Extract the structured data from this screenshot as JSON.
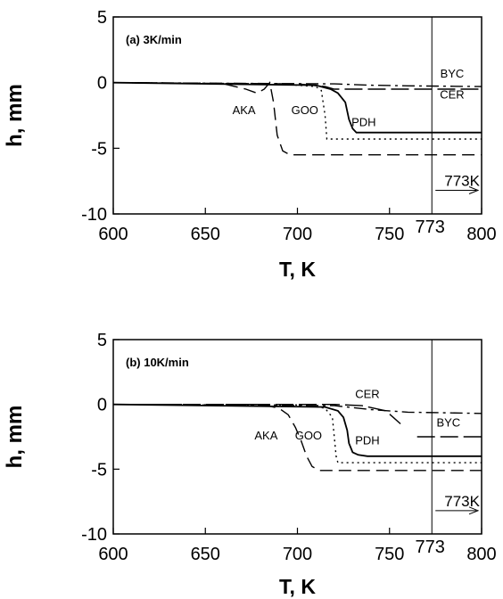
{
  "chart_data": [
    {
      "type": "line",
      "title": "(a) 3K/min",
      "xlabel": "T, K",
      "ylabel": "h, mm",
      "xlim": [
        600,
        800
      ],
      "ylim": [
        -10,
        5
      ],
      "xticks": [
        600,
        650,
        700,
        750,
        800
      ],
      "yticks": [
        5,
        0,
        -5,
        -10
      ],
      "marker": {
        "x": 773,
        "tick_label": "773",
        "arrow_label": "773K"
      },
      "series": [
        {
          "name": "AKA",
          "style": "dashed",
          "x": [
            600,
            660,
            672,
            678,
            682,
            685,
            687,
            689,
            692,
            696,
            702,
            800
          ],
          "y": [
            0,
            -0.1,
            -0.5,
            -0.8,
            -0.5,
            0,
            -1.5,
            -4,
            -5.2,
            -5.5,
            -5.5,
            -5.5
          ]
        },
        {
          "name": "GOO",
          "style": "dotted",
          "x": [
            600,
            690,
            700,
            710,
            713,
            715,
            716,
            718,
            800
          ],
          "y": [
            0,
            -0.1,
            -0.2,
            -0.3,
            -0.6,
            -2.5,
            -4.3,
            -4.3,
            -4.3
          ]
        },
        {
          "name": "PDH",
          "style": "solid",
          "x": [
            600,
            710,
            718,
            722,
            726,
            728,
            730,
            732,
            735,
            740,
            800
          ],
          "y": [
            0,
            -0.2,
            -0.5,
            -0.8,
            -1.5,
            -2.8,
            -3.5,
            -3.8,
            -3.8,
            -3.8,
            -3.8
          ]
        },
        {
          "name": "CER",
          "style": "long-dash",
          "x": [
            600,
            700,
            715,
            720,
            800
          ],
          "y": [
            0,
            -0.1,
            -0.3,
            -0.5,
            -0.5
          ]
        },
        {
          "name": "BYC",
          "style": "dash-dot",
          "x": [
            600,
            720,
            740,
            760,
            800
          ],
          "y": [
            0,
            -0.1,
            -0.2,
            -0.25,
            -0.3
          ]
        }
      ],
      "series_labels": [
        {
          "text": "AKA",
          "x": 671,
          "y": -2.4
        },
        {
          "text": "GOO",
          "x": 704,
          "y": -2.4
        },
        {
          "text": "PDH",
          "x": 736,
          "y": -3.3
        },
        {
          "text": "BYC",
          "x": 784,
          "y": 0.4
        },
        {
          "text": "CER",
          "x": 784,
          "y": -1.2
        }
      ]
    },
    {
      "type": "line",
      "title": "(b) 10K/min",
      "xlabel": "T, K",
      "ylabel": "h, mm",
      "xlim": [
        600,
        800
      ],
      "ylim": [
        -10,
        5
      ],
      "xticks": [
        600,
        650,
        700,
        750,
        800
      ],
      "yticks": [
        5,
        0,
        -5,
        -10
      ],
      "marker": {
        "x": 773,
        "tick_label": "773",
        "arrow_label": "773K"
      },
      "series": [
        {
          "name": "AKA",
          "style": "dashed",
          "x": [
            600,
            680,
            690,
            695,
            699,
            702,
            705,
            708,
            712,
            800
          ],
          "y": [
            0,
            0,
            -0.3,
            -0.8,
            -1.8,
            -2.8,
            -4,
            -4.8,
            -5.1,
            -5.1
          ]
        },
        {
          "name": "GOO",
          "style": "dotted",
          "x": [
            600,
            705,
            715,
            719,
            720,
            721,
            722,
            725,
            800
          ],
          "y": [
            0,
            -0.05,
            -0.3,
            -1.0,
            -2.5,
            -4.0,
            -4.5,
            -4.5,
            -4.5
          ]
        },
        {
          "name": "PDH",
          "style": "solid",
          "x": [
            600,
            715,
            722,
            725,
            727,
            728,
            730,
            733,
            738,
            800
          ],
          "y": [
            0,
            -0.2,
            -0.5,
            -1.0,
            -2.0,
            -3.0,
            -3.7,
            -3.9,
            -4.0,
            -4.0
          ]
        },
        {
          "name": "CER",
          "style": "long-dash",
          "x": [
            600,
            720,
            735,
            748,
            752,
            756
          ],
          "y": [
            0,
            0,
            -0.1,
            -0.5,
            -1.0,
            -1.5
          ]
        },
        {
          "name": "BYC",
          "style": "dash-dot",
          "x": [
            600,
            720,
            740,
            760,
            800
          ],
          "y": [
            0,
            -0.1,
            -0.4,
            -0.6,
            -0.7
          ]
        },
        {
          "name": "BYC-step",
          "style": "long-dash",
          "x": [
            765,
            800
          ],
          "y": [
            -2.5,
            -2.5
          ]
        }
      ],
      "series_labels": [
        {
          "text": "CER",
          "x": 738,
          "y": 0.5
        },
        {
          "text": "BYC",
          "x": 782,
          "y": -1.7
        },
        {
          "text": "AKA",
          "x": 683,
          "y": -2.7
        },
        {
          "text": "GOO",
          "x": 706,
          "y": -2.7
        },
        {
          "text": "PDH",
          "x": 738,
          "y": -3.1
        }
      ]
    }
  ]
}
